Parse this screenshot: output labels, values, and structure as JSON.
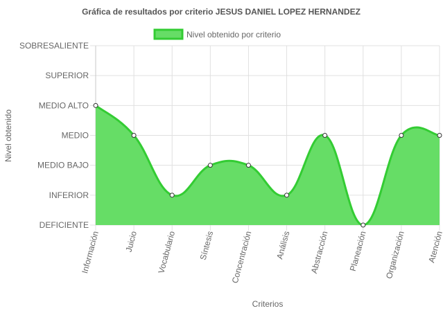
{
  "chart_data": {
    "type": "area",
    "title": "Gráfica de resultados por criterio JESUS DANIEL LOPEZ HERNANDEZ",
    "xlabel": "Criterios",
    "ylabel": "Nivel obtenido",
    "y_levels": [
      "DEFICIENTE",
      "INFERIOR",
      "MEDIO BAJO",
      "MEDIO",
      "MEDIO ALTO",
      "SUPERIOR",
      "SOBRESALIENTE"
    ],
    "ylim": [
      0,
      6
    ],
    "categories": [
      "Información",
      "Juicio",
      "Vocabulario",
      "Síntesis",
      "Concentración",
      "Análisis",
      "Abstracción",
      "Planeación",
      "Organización",
      "Atención"
    ],
    "series": [
      {
        "name": "Nivel obtenido por criterio",
        "values": [
          4,
          3,
          1,
          2,
          2,
          1,
          3,
          0,
          3,
          3
        ]
      }
    ],
    "grid": true,
    "legend_position": "top",
    "colors": {
      "fill": "#66dd66",
      "line": "#33cc33",
      "grid": "#e0e0e0",
      "axis": "#c8c8c8"
    }
  }
}
